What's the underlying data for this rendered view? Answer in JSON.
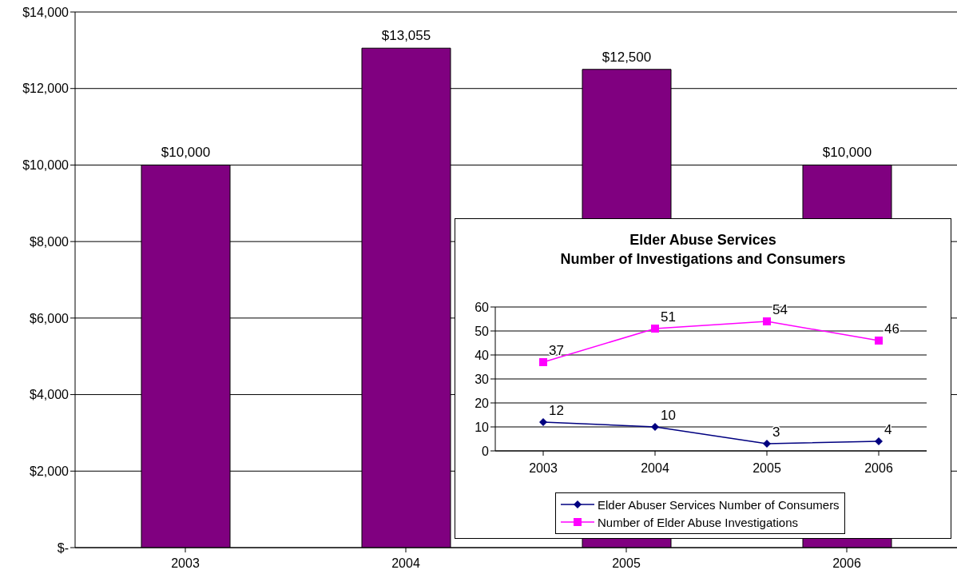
{
  "chart_data": [
    {
      "type": "bar",
      "categories": [
        "2003",
        "2004",
        "2005",
        "2006"
      ],
      "series": [
        {
          "color": "#800080",
          "values": [
            10000,
            13055,
            12500,
            10000
          ],
          "value_labels": [
            "$10,000",
            "$13,055",
            "$12,500",
            "$10,000"
          ]
        }
      ],
      "ylim": [
        0,
        14000
      ],
      "yticks": [
        {
          "value": 0,
          "label": "$-"
        },
        {
          "value": 2000,
          "label": "$2,000"
        },
        {
          "value": 4000,
          "label": "$4,000"
        },
        {
          "value": 6000,
          "label": "$6,000"
        },
        {
          "value": 8000,
          "label": "$8,000"
        },
        {
          "value": 10000,
          "label": "$10,000"
        },
        {
          "value": 12000,
          "label": "$12,000"
        },
        {
          "value": 14000,
          "label": "$14,000"
        }
      ],
      "grid": "y"
    },
    {
      "type": "line",
      "title": "Elder Abuse Services\nNumber of Investigations and Consumers",
      "categories": [
        "2003",
        "2004",
        "2005",
        "2006"
      ],
      "series": [
        {
          "name": "Elder Abuser Services Number of Consumers",
          "color": "#000080",
          "marker": "diamond",
          "values": [
            12,
            10,
            3,
            4
          ]
        },
        {
          "name": "Number of Elder Abuse Investigations",
          "color": "#ff00ff",
          "marker": "square",
          "values": [
            37,
            51,
            54,
            46
          ]
        }
      ],
      "ylim": [
        0,
        60
      ],
      "yticks": [
        0,
        10,
        20,
        30,
        40,
        50,
        60
      ],
      "grid": "y",
      "legend": "bottom",
      "data_labels": true
    }
  ]
}
